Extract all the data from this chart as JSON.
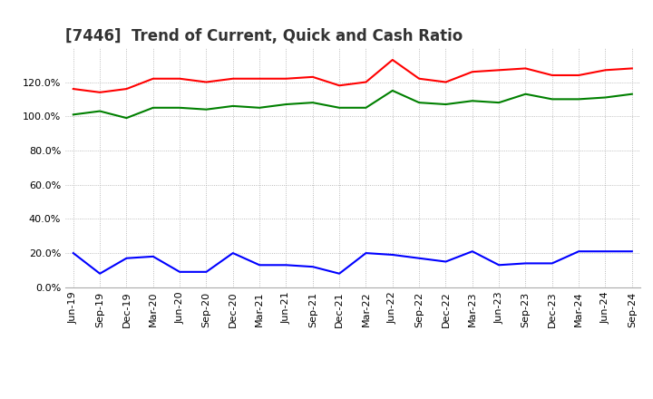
{
  "title": "[7446]  Trend of Current, Quick and Cash Ratio",
  "x_labels": [
    "Jun-19",
    "Sep-19",
    "Dec-19",
    "Mar-20",
    "Jun-20",
    "Sep-20",
    "Dec-20",
    "Mar-21",
    "Jun-21",
    "Sep-21",
    "Dec-21",
    "Mar-22",
    "Jun-22",
    "Sep-22",
    "Dec-22",
    "Mar-23",
    "Jun-23",
    "Sep-23",
    "Dec-23",
    "Mar-24",
    "Jun-24",
    "Sep-24"
  ],
  "current_ratio": [
    116,
    114,
    116,
    122,
    122,
    120,
    122,
    122,
    122,
    123,
    118,
    120,
    133,
    122,
    120,
    126,
    127,
    128,
    124,
    124,
    127,
    128
  ],
  "quick_ratio": [
    101,
    103,
    99,
    105,
    105,
    104,
    106,
    105,
    107,
    108,
    105,
    105,
    115,
    108,
    107,
    109,
    108,
    113,
    110,
    110,
    111,
    113
  ],
  "cash_ratio": [
    20,
    8,
    17,
    18,
    9,
    9,
    20,
    13,
    13,
    12,
    8,
    20,
    19,
    17,
    15,
    21,
    13,
    14,
    14,
    21,
    21,
    21
  ],
  "current_color": "#ff0000",
  "quick_color": "#008000",
  "cash_color": "#0000ff",
  "ylim": [
    0,
    140
  ],
  "yticks": [
    0,
    20,
    40,
    60,
    80,
    100,
    120
  ],
  "grid_color": "#aaaaaa",
  "bg_color": "#ffffff",
  "title_fontsize": 12,
  "tick_fontsize": 8,
  "legend_fontsize": 10
}
